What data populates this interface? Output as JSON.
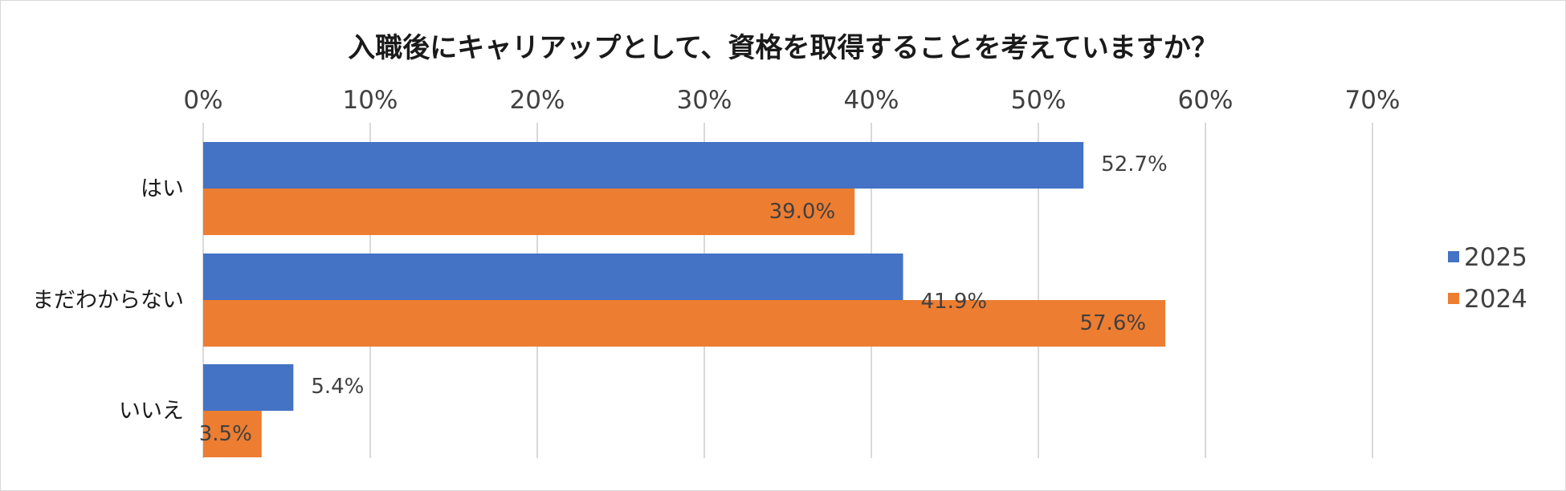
{
  "chart_data": {
    "type": "bar",
    "orientation": "horizontal",
    "title": "入職後にキャリアップとして、資格を取得することを考えていますか？",
    "categories": [
      "はい",
      "まだわからない",
      "いいえ"
    ],
    "series": [
      {
        "name": "2025",
        "values": [
          52.7,
          41.9,
          5.4
        ],
        "labels": [
          "52.7%",
          "41.9%",
          "5.4%"
        ],
        "color": "#4472C4"
      },
      {
        "name": "2024",
        "values": [
          39.0,
          57.6,
          3.5
        ],
        "labels": [
          "39.0%",
          "57.6%",
          "3.5%"
        ],
        "color": "#ED7D31"
      }
    ],
    "x_ticks": [
      "0%",
      "10%",
      "20%",
      "30%",
      "40%",
      "50%",
      "60%",
      "70%"
    ],
    "xlim": [
      0,
      70
    ],
    "grid": true,
    "legend_position": "right",
    "axis_position": "top"
  }
}
